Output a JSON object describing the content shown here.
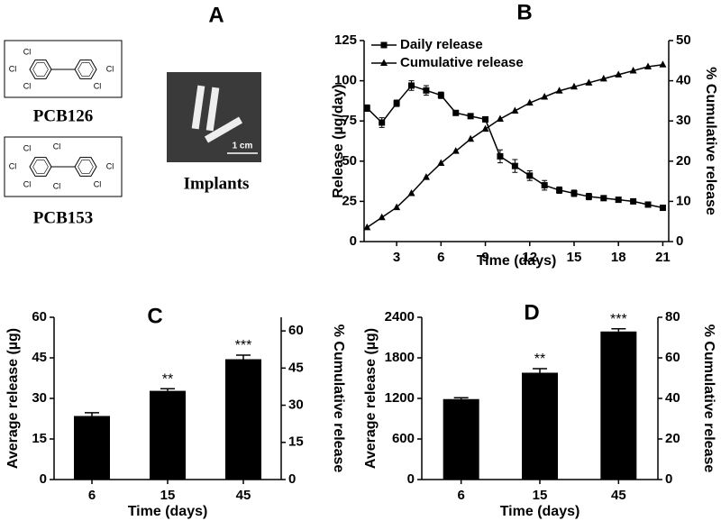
{
  "figure_a": {
    "label": "A",
    "compounds": [
      "PCB126",
      "PCB153"
    ],
    "atom_label": "Cl",
    "image_caption": "Implants",
    "scale_bar": "1 cm"
  },
  "chart_data": [
    {
      "type": "line",
      "label": "B",
      "x_label": "Time (days)",
      "y_label": "Release (µg/day)",
      "y2_label": "% Cumulative release",
      "x": [
        1,
        2,
        3,
        4,
        5,
        6,
        7,
        8,
        9,
        10,
        11,
        12,
        13,
        14,
        15,
        16,
        17,
        18,
        19,
        20,
        21
      ],
      "xlim": [
        0.8,
        21.4
      ],
      "xticks": [
        3,
        6,
        9,
        12,
        15,
        18,
        21
      ],
      "ylim": [
        0,
        125
      ],
      "yticks": [
        0,
        25,
        50,
        75,
        100,
        125
      ],
      "y2lim": [
        0,
        50
      ],
      "y2ticks": [
        0,
        10,
        20,
        30,
        40,
        50
      ],
      "legend": "upper left",
      "series": [
        {
          "name": "Daily release",
          "color": "#000000",
          "marker": "square",
          "values": [
            83,
            74,
            86,
            97,
            94,
            91,
            80,
            78,
            76,
            53,
            47,
            41,
            35,
            32,
            30,
            28,
            27,
            26,
            25,
            23,
            21
          ],
          "errors": [
            2,
            3,
            2,
            3,
            3,
            2,
            1,
            1,
            1,
            4,
            4,
            3,
            3,
            2,
            2,
            2,
            1,
            1,
            1,
            1,
            1
          ]
        },
        {
          "name": "Cumulative release",
          "color": "#000000",
          "marker": "triangle",
          "axis": "y2",
          "values": [
            3.5,
            6,
            8.5,
            12,
            16,
            19.5,
            22.5,
            25.5,
            28,
            30.5,
            32.5,
            34.5,
            36,
            37.5,
            38.5,
            39.5,
            40.5,
            41.5,
            42.5,
            43.5,
            44
          ]
        }
      ]
    },
    {
      "type": "bar",
      "label": "C",
      "x_label": "Time (days)",
      "y_label": "Average release (µg)",
      "y2_label": "% Cumulative release",
      "categories": [
        "6",
        "15",
        "45"
      ],
      "values": [
        23.5,
        32.8,
        44.5
      ],
      "errors": [
        1.2,
        0.8,
        1.5
      ],
      "annotations": [
        null,
        "**",
        "***"
      ],
      "color": "#000000",
      "ylim": [
        0,
        60
      ],
      "yticks": [
        0,
        15,
        30,
        45,
        60
      ],
      "y2lim": [
        0,
        65.5
      ],
      "y2ticks": [
        0,
        15,
        30,
        45,
        60
      ]
    },
    {
      "type": "bar",
      "label": "D",
      "x_label": "Time (days)",
      "y_label": "Average release (µg)",
      "y2_label": "% Cumulative release",
      "categories": [
        "6",
        "15",
        "45"
      ],
      "values": [
        1190,
        1580,
        2190
      ],
      "errors": [
        20,
        60,
        40
      ],
      "annotations": [
        null,
        "**",
        "***"
      ],
      "color": "#000000",
      "ylim": [
        0,
        2400
      ],
      "yticks": [
        0,
        600,
        1200,
        1800,
        2400
      ],
      "y2lim": [
        0,
        80
      ],
      "y2ticks": [
        0,
        20,
        40,
        60,
        80
      ]
    }
  ]
}
